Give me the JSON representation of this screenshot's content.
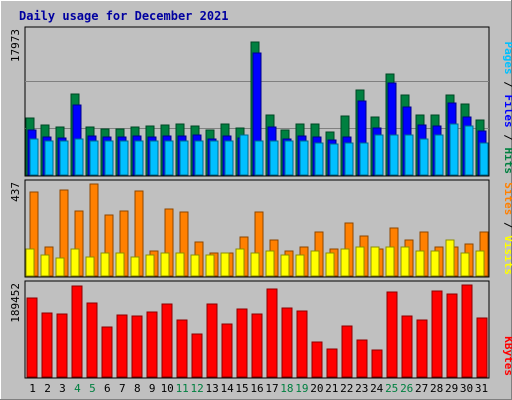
{
  "chart_data": {
    "type": "bar",
    "title": "Daily usage for December 2021",
    "days": [
      "1",
      "2",
      "3",
      "4",
      "5",
      "6",
      "7",
      "8",
      "9",
      "10",
      "11",
      "12",
      "13",
      "14",
      "15",
      "16",
      "17",
      "18",
      "19",
      "20",
      "21",
      "22",
      "23",
      "24",
      "25",
      "26",
      "27",
      "28",
      "29",
      "30",
      "31"
    ],
    "weekend_days": [
      "4",
      "5",
      "11",
      "12",
      "18",
      "19",
      "25",
      "26"
    ],
    "panels": [
      {
        "name": "pages-files-hits",
        "ymax_label": "17973",
        "ymax": 17973,
        "side_labels": [
          {
            "text": "Pages",
            "color": "#00c0ff"
          },
          {
            "text": " / ",
            "color": "#000000"
          },
          {
            "text": "Files",
            "color": "#0000ff"
          },
          {
            "text": " / ",
            "color": "#000000"
          },
          {
            "text": "Hits",
            "color": "#008040"
          }
        ],
        "series": [
          {
            "key": "hits",
            "color": "#008040",
            "values": [
              7150,
              6300,
              6050,
              10150,
              6050,
              5800,
              5700,
              6050,
              6100,
              6300,
              6350,
              6150,
              5600,
              6350,
              5850,
              16550,
              7500,
              5600,
              6400,
              6350,
              5350,
              7350,
              10650,
              7200,
              12600,
              9950,
              7500,
              7450,
              10000,
              8800,
              6900
            ]
          },
          {
            "key": "files",
            "color": "#0000ff",
            "values": [
              5600,
              4800,
              4650,
              8750,
              4900,
              4700,
              4700,
              4850,
              4750,
              4850,
              4850,
              5050,
              4500,
              4850,
              4600,
              15250,
              5950,
              4450,
              4850,
              4800,
              4350,
              4700,
              9200,
              5900,
              11450,
              8500,
              6250,
              6150,
              8950,
              7300,
              5550
            ]
          },
          {
            "key": "pages",
            "color": "#00c0ff",
            "values": [
              4550,
              4300,
              4300,
              4550,
              4300,
              4300,
              4300,
              4300,
              4300,
              4300,
              4300,
              4300,
              4300,
              4300,
              4950,
              4300,
              4300,
              4300,
              4300,
              4050,
              3900,
              4050,
              4050,
              4950,
              4950,
              4950,
              4550,
              4950,
              6400,
              6100,
              4050
            ]
          }
        ]
      },
      {
        "name": "visits-sites",
        "ymax_label": "437",
        "ymax": 437,
        "side_labels": [
          {
            "text": "Sites",
            "color": "#ff8000"
          },
          {
            "text": " / ",
            "color": "#000000"
          },
          {
            "text": "Visits",
            "color": "#ffff00"
          }
        ],
        "series": [
          {
            "key": "sites",
            "color": "#ff8000",
            "values": [
              400,
              140,
              410,
              310,
              437,
              290,
              310,
              403,
              120,
              320,
              303,
              160,
              110,
              110,
              185,
              303,
              170,
              120,
              140,
              210,
              130,
              250,
              190,
              130,
              230,
              170,
              210,
              140,
              140,
              150,
              210
            ]
          },
          {
            "key": "visits",
            "color": "#ffff00",
            "values": [
              130,
              100,
              85,
              130,
              90,
              110,
              110,
              90,
              100,
              110,
              110,
              100,
              100,
              110,
              130,
              110,
              120,
              100,
              100,
              120,
              110,
              130,
              140,
              140,
              140,
              140,
              120,
              120,
              170,
              110,
              120
            ]
          }
        ]
      },
      {
        "name": "kbytes",
        "ymax_label": "189452",
        "ymax": 189452,
        "side_labels": [
          {
            "text": "KBytes",
            "color": "#ff0000"
          }
        ],
        "series": [
          {
            "key": "kbytes",
            "color": "#ff0000",
            "values": [
              162000,
              132000,
              130000,
              187000,
              152000,
              103000,
              128000,
              126000,
              134000,
              151000,
              118000,
              89000,
              151000,
              109000,
              140000,
              129000,
              181000,
              142000,
              135000,
              73000,
              58000,
              106000,
              76000,
              55000,
              175000,
              125000,
              118000,
              177000,
              171000,
              189452,
              122000
            ]
          }
        ]
      }
    ]
  }
}
